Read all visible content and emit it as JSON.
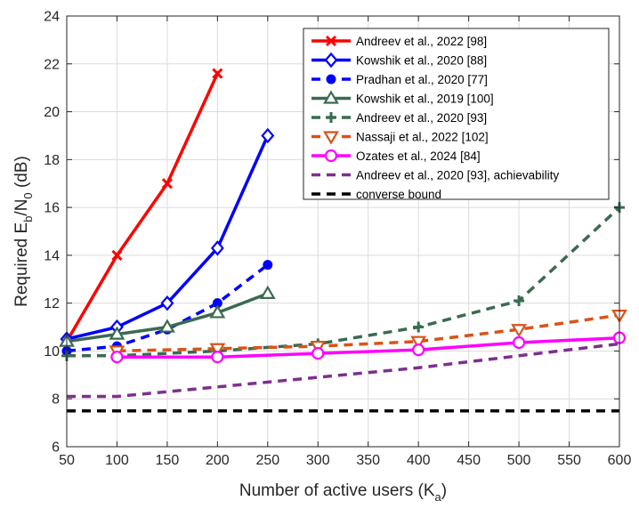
{
  "chart_data": {
    "type": "line",
    "xlabel": "Number of active users (K",
    "xlabel_sub": "a",
    "xlabel_end": ")",
    "ylabel_pre": "Required E",
    "ylabel_sub1": "b",
    "ylabel_mid": "/N",
    "ylabel_sub2": "0",
    "ylabel_post": " (dB)",
    "xlim": [
      50,
      600
    ],
    "ylim": [
      6,
      24
    ],
    "xticks": [
      50,
      100,
      150,
      200,
      250,
      300,
      350,
      400,
      450,
      500,
      550,
      600
    ],
    "yticks": [
      6,
      8,
      10,
      12,
      14,
      16,
      18,
      20,
      22,
      24
    ],
    "grid": true,
    "legend_position": "top-right",
    "series": [
      {
        "name": "Andreev et al., 2022 [98]",
        "color": "#ff0000",
        "dash": "solid",
        "marker": "x",
        "x": [
          50,
          100,
          150,
          200
        ],
        "y": [
          10.4,
          14.0,
          17.0,
          21.6
        ]
      },
      {
        "name": "Kowshik et al., 2020 [88]",
        "color": "#0000ff",
        "dash": "solid",
        "marker": "diamond",
        "x": [
          50,
          100,
          150,
          200,
          250
        ],
        "y": [
          10.5,
          11.0,
          12.0,
          14.3,
          19.0
        ]
      },
      {
        "name": "Pradhan et al., 2020 [77]",
        "color": "#0000ff",
        "dash": "dashed",
        "marker": "dot",
        "x": [
          50,
          100,
          150,
          200,
          250
        ],
        "y": [
          10.0,
          10.2,
          10.9,
          12.0,
          13.6
        ]
      },
      {
        "name": "Kowshik et al., 2019 [100]",
        "color": "#3a6b50",
        "dash": "solid",
        "marker": "triangle",
        "x": [
          50,
          100,
          150,
          200,
          250
        ],
        "y": [
          10.4,
          10.7,
          11.0,
          11.6,
          12.4
        ]
      },
      {
        "name": "Andreev et al., 2020 [93]",
        "color": "#3a6b50",
        "dash": "dashed",
        "marker": "plus",
        "x": [
          50,
          100,
          200,
          300,
          400,
          500,
          600
        ],
        "y": [
          9.8,
          9.8,
          10.0,
          10.3,
          11.0,
          12.1,
          16.0
        ]
      },
      {
        "name": "Nassaji et al., 2022 [102]",
        "color": "#d95319",
        "dash": "dashed",
        "marker": "triangle-down",
        "x": [
          100,
          200,
          300,
          400,
          500,
          600
        ],
        "y": [
          10.0,
          10.1,
          10.2,
          10.4,
          10.9,
          11.5
        ]
      },
      {
        "name": "Ozates et al., 2024 [84]",
        "color": "#ff00ff",
        "dash": "solid",
        "marker": "circle",
        "x": [
          100,
          200,
          300,
          400,
          500,
          600
        ],
        "y": [
          9.75,
          9.75,
          9.9,
          10.05,
          10.35,
          10.55
        ]
      },
      {
        "name": "Andreev et al., 2020 [93], achievability",
        "color": "#7e2f8e",
        "dash": "dashed",
        "marker": "none",
        "x": [
          50,
          100,
          150,
          200,
          300,
          400,
          500,
          600
        ],
        "y": [
          8.1,
          8.1,
          8.3,
          8.5,
          8.9,
          9.3,
          9.8,
          10.3
        ]
      },
      {
        "name": "converse bound",
        "color": "#000000",
        "dash": "dashed",
        "marker": "none",
        "x": [
          50,
          600
        ],
        "y": [
          7.5,
          7.5
        ]
      }
    ]
  }
}
